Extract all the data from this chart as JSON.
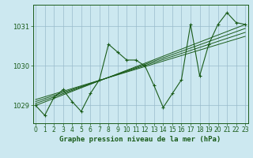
{
  "xlabel": "Graphe pression niveau de la mer (hPa)",
  "background_color": "#cce8f0",
  "plot_bg_color": "#cce8f0",
  "grid_color": "#99bbcc",
  "line_color": "#1a5c1a",
  "marker_color": "#1a5c1a",
  "x": [
    0,
    1,
    2,
    3,
    4,
    5,
    6,
    7,
    8,
    9,
    10,
    11,
    12,
    13,
    14,
    15,
    16,
    17,
    18,
    19,
    20,
    21,
    22,
    23
  ],
  "main_series": [
    1029.0,
    1028.75,
    1029.2,
    1029.4,
    1029.1,
    1028.85,
    1029.3,
    1029.65,
    1030.55,
    1030.35,
    1030.15,
    1030.15,
    1030.0,
    1029.5,
    1028.95,
    1029.3,
    1029.65,
    1031.05,
    1029.75,
    1030.55,
    1031.05,
    1031.35,
    1031.1,
    1031.05
  ],
  "trend_lines": [
    [
      [
        0,
        1029.0
      ],
      [
        23,
        1031.05
      ]
    ],
    [
      [
        0,
        1029.05
      ],
      [
        23,
        1030.95
      ]
    ],
    [
      [
        0,
        1029.1
      ],
      [
        23,
        1030.85
      ]
    ],
    [
      [
        0,
        1029.15
      ],
      [
        23,
        1030.75
      ]
    ]
  ],
  "ylim": [
    1028.55,
    1031.55
  ],
  "xlim": [
    -0.3,
    23.3
  ],
  "yticks": [
    1029,
    1030,
    1031
  ],
  "xticks": [
    0,
    1,
    2,
    3,
    4,
    5,
    6,
    7,
    8,
    9,
    10,
    11,
    12,
    13,
    14,
    15,
    16,
    17,
    18,
    19,
    20,
    21,
    22,
    23
  ],
  "tick_fontsize": 5.5,
  "xlabel_fontsize": 6.5,
  "border_color": "#1a5c1a"
}
